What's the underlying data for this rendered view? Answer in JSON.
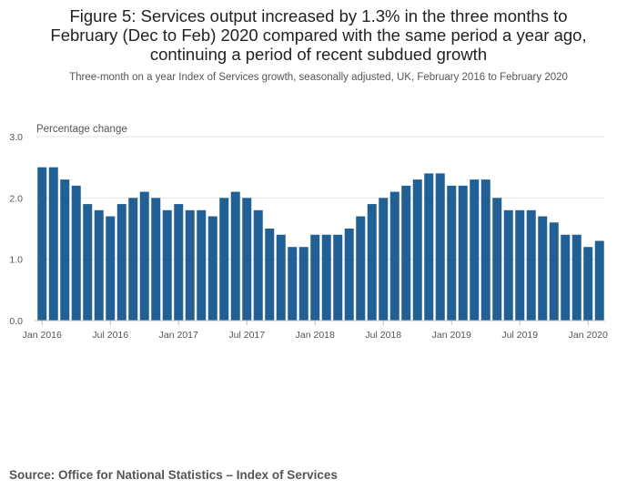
{
  "title_lines": [
    "Figure 5: Services output increased by 1.3% in the three months to",
    "February (Dec to Feb) 2020 compared with the same period a year ago,",
    "continuing a period of recent subdued growth"
  ],
  "subtitle": "Three-month on a year Index of Services growth, seasonally adjusted, UK, February 2016 to February 2020",
  "source": "Source: Office for National Statistics – Index of Services",
  "colors": {
    "bar": "#206095",
    "grid": "#e6e6e6",
    "axis": "#bbbbbb",
    "tick_text": "#555555"
  },
  "chart_data": {
    "type": "bar",
    "title": "Figure 5: Services output increased by 1.3% in the three months to February (Dec to Feb) 2020 compared with the same period a year ago, continuing a period of recent subdued growth",
    "ylabel": "Percentage change",
    "xlabel": "",
    "ylim": [
      0,
      3.0
    ],
    "yticks": [
      "0.0",
      "1.0",
      "2.0",
      "3.0"
    ],
    "ytick_values": [
      0,
      1,
      2,
      3
    ],
    "xtick_labels": [
      "Jan 2016",
      "Jul 2016",
      "Jan 2017",
      "Jul 2017",
      "Jan 2018",
      "Jul 2018",
      "Jan 2019",
      "Jul 2019",
      "Jan 2020"
    ],
    "xtick_indices": [
      0,
      6,
      12,
      18,
      24,
      30,
      36,
      42,
      48
    ],
    "categories": [
      "Jan 2016",
      "Feb 2016",
      "Mar 2016",
      "Apr 2016",
      "May 2016",
      "Jun 2016",
      "Jul 2016",
      "Aug 2016",
      "Sep 2016",
      "Oct 2016",
      "Nov 2016",
      "Dec 2016",
      "Jan 2017",
      "Feb 2017",
      "Mar 2017",
      "Apr 2017",
      "May 2017",
      "Jun 2017",
      "Jul 2017",
      "Aug 2017",
      "Sep 2017",
      "Oct 2017",
      "Nov 2017",
      "Dec 2017",
      "Jan 2018",
      "Feb 2018",
      "Mar 2018",
      "Apr 2018",
      "May 2018",
      "Jun 2018",
      "Jul 2018",
      "Aug 2018",
      "Sep 2018",
      "Oct 2018",
      "Nov 2018",
      "Dec 2018",
      "Jan 2019",
      "Feb 2019",
      "Mar 2019",
      "Apr 2019",
      "May 2019",
      "Jun 2019",
      "Jul 2019",
      "Aug 2019",
      "Sep 2019",
      "Oct 2019",
      "Nov 2019",
      "Dec 2019",
      "Jan 2020",
      "Feb 2020"
    ],
    "values": [
      2.5,
      2.5,
      2.3,
      2.2,
      1.9,
      1.8,
      1.7,
      1.9,
      2.0,
      2.1,
      2.0,
      1.8,
      1.9,
      1.8,
      1.8,
      1.7,
      2.0,
      2.1,
      2.0,
      1.8,
      1.5,
      1.4,
      1.2,
      1.2,
      1.4,
      1.4,
      1.4,
      1.5,
      1.7,
      1.9,
      2.0,
      2.1,
      2.2,
      2.3,
      2.4,
      2.4,
      2.2,
      2.2,
      2.3,
      2.3,
      2.0,
      1.8,
      1.8,
      1.8,
      1.7,
      1.6,
      1.4,
      1.4,
      1.2,
      1.3
    ],
    "grid": true
  }
}
